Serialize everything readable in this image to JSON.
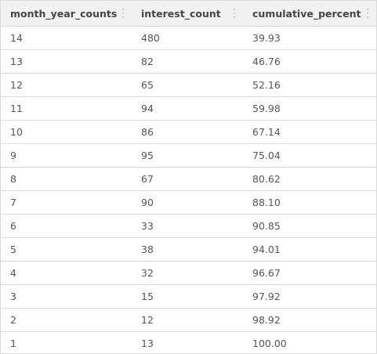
{
  "columns": [
    {
      "label": "month_year_counts"
    },
    {
      "label": "interest_count"
    },
    {
      "label": "cumulative_percent"
    }
  ],
  "rows": [
    [
      "14",
      "480",
      "39.93"
    ],
    [
      "13",
      "82",
      "46.76"
    ],
    [
      "12",
      "65",
      "52.16"
    ],
    [
      "11",
      "94",
      "59.98"
    ],
    [
      "10",
      "86",
      "67.14"
    ],
    [
      "9",
      "95",
      "75.04"
    ],
    [
      "8",
      "67",
      "80.62"
    ],
    [
      "7",
      "90",
      "88.10"
    ],
    [
      "6",
      "33",
      "90.85"
    ],
    [
      "5",
      "38",
      "94.01"
    ],
    [
      "4",
      "32",
      "96.67"
    ],
    [
      "3",
      "15",
      "97.92"
    ],
    [
      "2",
      "12",
      "98.92"
    ],
    [
      "1",
      "13",
      "100.00"
    ]
  ]
}
